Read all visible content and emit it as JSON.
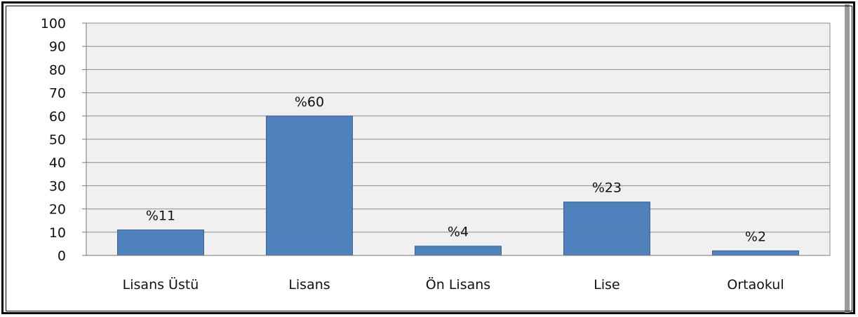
{
  "chart_data": {
    "type": "bar",
    "categories": [
      "Lisans Üstü",
      "Lisans",
      "Ön Lisans",
      "Lise",
      "Ortaokul"
    ],
    "values": [
      11,
      60,
      4,
      23,
      2
    ],
    "data_labels": [
      "%11",
      "%60",
      "%4",
      "%23",
      "%2"
    ],
    "yticks": [
      "0",
      "10",
      "20",
      "30",
      "40",
      "50",
      "60",
      "70",
      "80",
      "90",
      "100"
    ],
    "ylim": [
      0,
      100
    ],
    "grid": true,
    "colors": {
      "bar": "#4f81bd",
      "bar_edge": "#3a6293",
      "plot_bg": "#f0f0f0",
      "grid": "#8c8c8c"
    }
  }
}
